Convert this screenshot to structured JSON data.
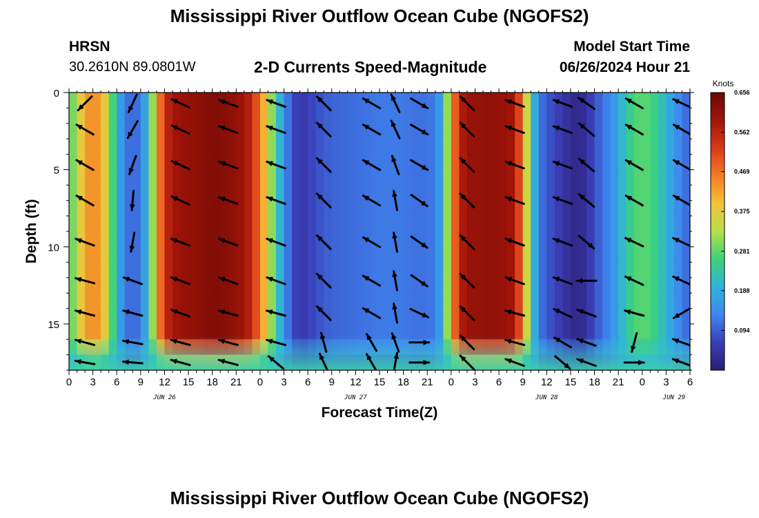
{
  "header": {
    "title": "Mississippi River Outflow Ocean Cube (NGOFS2)",
    "station_code": "HRSN",
    "station_coords": "30.2610N  89.0801W",
    "subtitle": "2-D Currents Speed-Magnitude",
    "model_start_label": "Model Start Time",
    "model_start_value": "06/26/2024 Hour 21",
    "footer_title": "Mississippi River Outflow Ocean Cube (NGOFS2)"
  },
  "chart_data": {
    "type": "heatmap",
    "title": "2-D Currents Speed-Magnitude",
    "xlabel": "Forecast Time(Z)",
    "ylabel": "Depth (ft)",
    "x_unit": "hours since 06/26/2024 00Z",
    "xlim": [
      0,
      78
    ],
    "ylim": [
      0,
      18
    ],
    "y_inverted": true,
    "x_ticks": [
      0,
      3,
      6,
      9,
      12,
      15,
      18,
      21,
      24,
      27,
      30,
      33,
      36,
      39,
      42,
      45,
      48,
      51,
      54,
      57,
      60,
      63,
      66,
      69,
      72,
      75,
      78
    ],
    "x_tick_labels": [
      "0",
      "3",
      "6",
      "9",
      "12",
      "15",
      "18",
      "21",
      "0",
      "3",
      "6",
      "9",
      "12",
      "15",
      "18",
      "21",
      "0",
      "3",
      "6",
      "9",
      "12",
      "15",
      "18",
      "21",
      "0",
      "3",
      "6"
    ],
    "y_ticks": [
      0,
      5,
      10,
      15
    ],
    "y_tick_labels": [
      "0",
      "5",
      "10",
      "15"
    ],
    "date_labels": [
      {
        "label": "JUN 26",
        "x": 12
      },
      {
        "label": "JUN 27",
        "x": 36
      },
      {
        "label": "JUN 28",
        "x": 60
      },
      {
        "label": "JUN 29",
        "x": 76
      }
    ],
    "colorbar": {
      "label": "Knots",
      "range": [
        0,
        0.656
      ],
      "ticks": [
        0.094,
        0.188,
        0.281,
        0.375,
        0.469,
        0.562,
        0.656
      ],
      "tick_labels": [
        "0.094",
        "0.188",
        "0.281",
        "0.375",
        "0.469",
        "0.562",
        "0.656"
      ]
    },
    "speed_profile_by_hour": [
      {
        "x": 0,
        "speed": 0.25
      },
      {
        "x": 1,
        "speed": 0.34
      },
      {
        "x": 2,
        "speed": 0.42
      },
      {
        "x": 3,
        "speed": 0.45
      },
      {
        "x": 4,
        "speed": 0.42
      },
      {
        "x": 5,
        "speed": 0.33
      },
      {
        "x": 6,
        "speed": 0.2
      },
      {
        "x": 7,
        "speed": 0.12
      },
      {
        "x": 8,
        "speed": 0.1
      },
      {
        "x": 9,
        "speed": 0.12
      },
      {
        "x": 10,
        "speed": 0.22
      },
      {
        "x": 11,
        "speed": 0.4
      },
      {
        "x": 12,
        "speed": 0.55
      },
      {
        "x": 13,
        "speed": 0.58
      },
      {
        "x": 14,
        "speed": 0.6
      },
      {
        "x": 16,
        "speed": 0.61
      },
      {
        "x": 18,
        "speed": 0.63
      },
      {
        "x": 20,
        "speed": 0.62
      },
      {
        "x": 22,
        "speed": 0.59
      },
      {
        "x": 23,
        "speed": 0.55
      },
      {
        "x": 24,
        "speed": 0.46
      },
      {
        "x": 25,
        "speed": 0.36
      },
      {
        "x": 26,
        "speed": 0.25
      },
      {
        "x": 27,
        "speed": 0.15
      },
      {
        "x": 28,
        "speed": 0.08
      },
      {
        "x": 29,
        "speed": 0.05
      },
      {
        "x": 30,
        "speed": 0.06
      },
      {
        "x": 31,
        "speed": 0.08
      },
      {
        "x": 33,
        "speed": 0.1
      },
      {
        "x": 36,
        "speed": 0.11
      },
      {
        "x": 39,
        "speed": 0.12
      },
      {
        "x": 42,
        "speed": 0.12
      },
      {
        "x": 44,
        "speed": 0.11
      },
      {
        "x": 46,
        "speed": 0.12
      },
      {
        "x": 47,
        "speed": 0.2
      },
      {
        "x": 48,
        "speed": 0.42
      },
      {
        "x": 49,
        "speed": 0.56
      },
      {
        "x": 50,
        "speed": 0.6
      },
      {
        "x": 53,
        "speed": 0.61
      },
      {
        "x": 55,
        "speed": 0.6
      },
      {
        "x": 56,
        "speed": 0.58
      },
      {
        "x": 57,
        "speed": 0.45
      },
      {
        "x": 58,
        "speed": 0.25
      },
      {
        "x": 59,
        "speed": 0.12
      },
      {
        "x": 60,
        "speed": 0.09
      },
      {
        "x": 61,
        "speed": 0.07
      },
      {
        "x": 62,
        "speed": 0.05
      },
      {
        "x": 63,
        "speed": 0.03
      },
      {
        "x": 64,
        "speed": 0.02
      },
      {
        "x": 65,
        "speed": 0.04
      },
      {
        "x": 66,
        "speed": 0.08
      },
      {
        "x": 67,
        "speed": 0.11
      },
      {
        "x": 68,
        "speed": 0.14
      },
      {
        "x": 69,
        "speed": 0.18
      },
      {
        "x": 70,
        "speed": 0.23
      },
      {
        "x": 71,
        "speed": 0.27
      },
      {
        "x": 72,
        "speed": 0.28
      },
      {
        "x": 73,
        "speed": 0.27
      },
      {
        "x": 74,
        "speed": 0.24
      },
      {
        "x": 75,
        "speed": 0.2
      },
      {
        "x": 76,
        "speed": 0.16
      },
      {
        "x": 77,
        "speed": 0.12
      },
      {
        "x": 78,
        "speed": 0.1
      }
    ],
    "vector_columns": [
      {
        "x": 2,
        "dir": [
          -135,
          150,
          150,
          150,
          160,
          165,
          165,
          165,
          170
        ]
      },
      {
        "x": 8,
        "dir": [
          -115,
          -120,
          -110,
          -95,
          -100,
          160,
          165,
          170,
          175
        ]
      },
      {
        "x": 14,
        "dir": [
          155,
          155,
          155,
          155,
          160,
          160,
          160,
          165,
          165
        ]
      },
      {
        "x": 20,
        "dir": [
          160,
          160,
          160,
          160,
          160,
          160,
          165,
          165,
          165
        ]
      },
      {
        "x": 26,
        "dir": [
          160,
          160,
          160,
          160,
          160,
          160,
          165,
          165,
          140
        ]
      },
      {
        "x": 32,
        "dir": [
          135,
          135,
          135,
          135,
          135,
          135,
          135,
          105,
          115
        ]
      },
      {
        "x": 38,
        "dir": [
          150,
          150,
          150,
          150,
          150,
          150,
          150,
          120,
          120
        ]
      },
      {
        "x": 41,
        "dir": [
          115,
          115,
          110,
          100,
          100,
          100,
          100,
          110,
          80
        ]
      },
      {
        "x": 44,
        "dir": [
          -30,
          -30,
          -30,
          -35,
          -35,
          -35,
          -25,
          0,
          0
        ]
      },
      {
        "x": 50,
        "dir": [
          135,
          135,
          135,
          135,
          135,
          135,
          135,
          135,
          135
        ]
      },
      {
        "x": 56,
        "dir": [
          160,
          160,
          160,
          160,
          160,
          160,
          165,
          165,
          160
        ]
      },
      {
        "x": 62,
        "dir": [
          160,
          160,
          160,
          160,
          160,
          160,
          155,
          150,
          -40
        ]
      },
      {
        "x": 65,
        "dir": [
          145,
          140,
          140,
          140,
          -40,
          180,
          160,
          160,
          160
        ]
      },
      {
        "x": 71,
        "dir": [
          150,
          150,
          150,
          150,
          155,
          155,
          165,
          -105,
          0
        ]
      },
      {
        "x": 77,
        "dir": [
          155,
          150,
          150,
          150,
          155,
          155,
          -150,
          160,
          160
        ]
      }
    ],
    "vector_depths": [
      0.7,
      2.4,
      4.7,
      7,
      9.7,
      12.2,
      14.3,
      16.2,
      17.5
    ]
  }
}
